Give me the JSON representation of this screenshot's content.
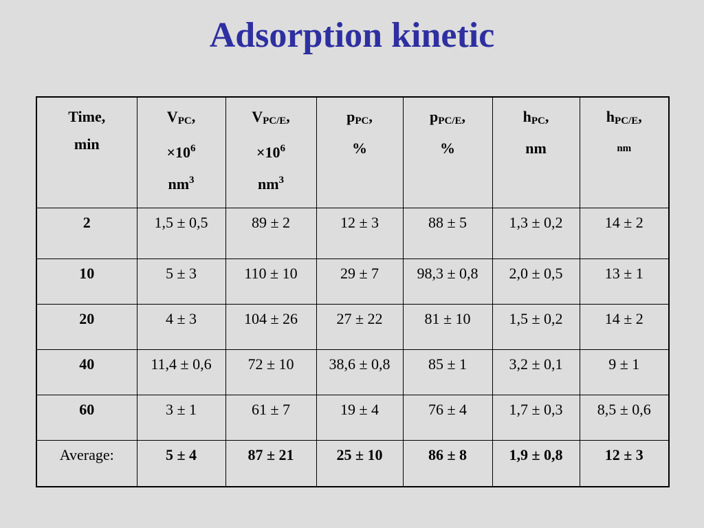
{
  "title": "Adsorption kinetic",
  "table": {
    "headers": [
      {
        "line1": "Time,",
        "line2": "min"
      },
      {
        "base": "V",
        "sub": "PC",
        "tail": ",",
        "line2a": "×10",
        "line2sup": "6",
        "line3a": "nm",
        "line3sup": "3"
      },
      {
        "base": "V",
        "sub": "PC/E",
        "tail": ",",
        "line2a": "×10",
        "line2sup": "6",
        "line3a": "nm",
        "line3sup": "3"
      },
      {
        "base": "p",
        "sub": "PC",
        "tail": ",",
        "line2": "%"
      },
      {
        "base": "p",
        "sub": "PC/E",
        "tail": ",",
        "line2": "%"
      },
      {
        "base": "h",
        "sub": "PC",
        "tail": ",",
        "line2": "nm"
      },
      {
        "base": "h",
        "sub": "PC/E",
        "tail": ",",
        "line2": "nm"
      }
    ],
    "rows": [
      [
        "2",
        "1,5 ± 0,5",
        "89 ± 2",
        "12 ± 3",
        "88 ± 5",
        "1,3 ± 0,2",
        "14 ± 2"
      ],
      [
        "10",
        "5 ± 3",
        "110 ± 10",
        "29 ± 7",
        "98,3 ± 0,8",
        "2,0 ± 0,5",
        "13 ± 1"
      ],
      [
        "20",
        "4 ± 3",
        "104 ± 26",
        "27 ± 22",
        "81 ± 10",
        "1,5 ± 0,2",
        "14 ± 2"
      ],
      [
        "40",
        "11,4 ± 0,6",
        "72 ± 10",
        "38,6 ± 0,8",
        "85 ± 1",
        "3,2 ± 0,1",
        "9 ± 1"
      ],
      [
        "60",
        "3 ± 1",
        "61 ± 7",
        "19 ± 4",
        "76 ± 4",
        "1,7 ± 0,3",
        "8,5 ± 0,6"
      ]
    ],
    "average": [
      "Average:",
      "5 ± 4",
      "87 ± 21",
      "25 ± 10",
      "86 ± 8",
      "1,9 ± 0,8",
      "12 ± 3"
    ]
  }
}
